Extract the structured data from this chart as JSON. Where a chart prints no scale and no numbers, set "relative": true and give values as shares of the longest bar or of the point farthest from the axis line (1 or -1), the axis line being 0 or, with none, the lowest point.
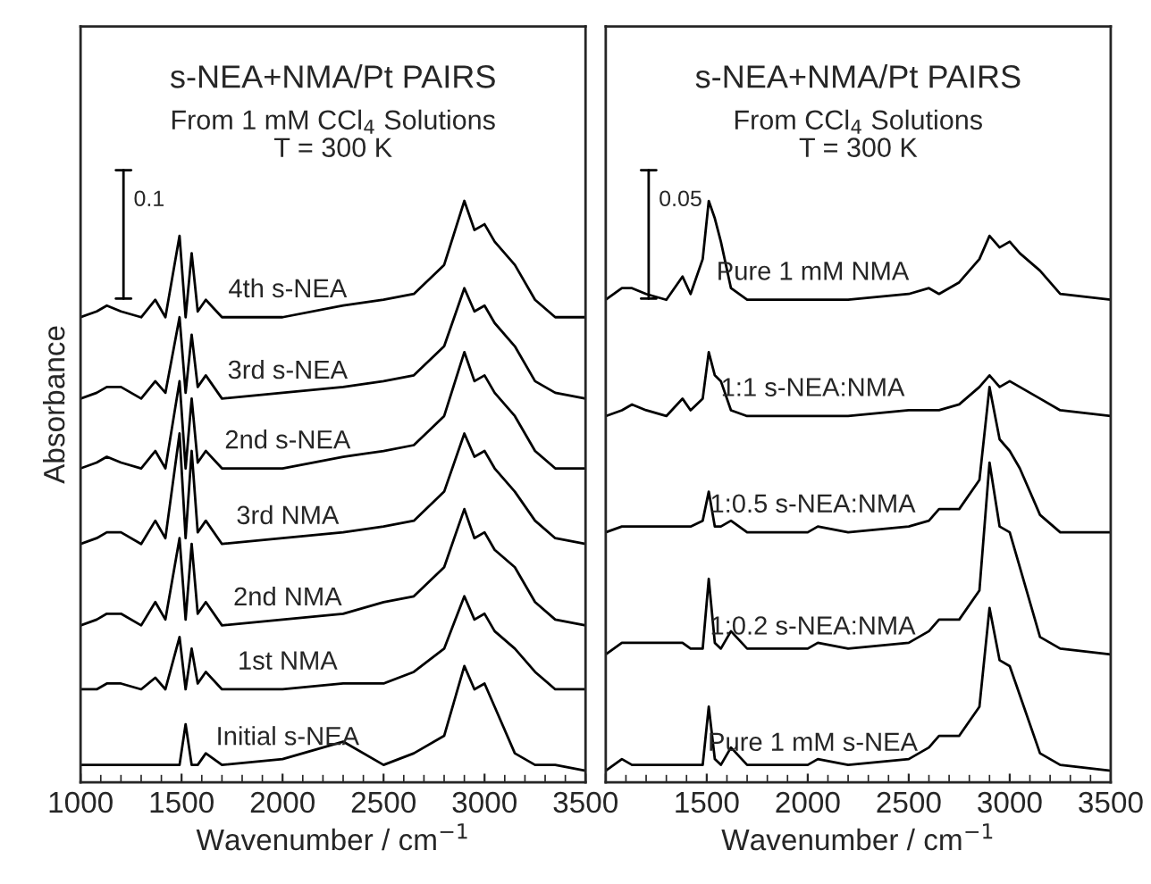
{
  "chart_data": [
    {
      "type": "line",
      "title": "s-NEA+NMA/Pt PAIRS",
      "subtitle": "From 1 mM CCl$_{4}$ Solutions\nT = 300 K",
      "xlabel": "Wavenumber / cm$^{−1}$",
      "ylabel": "Absorbance",
      "relative": true,
      "xlim": [
        1000,
        3500
      ],
      "xticks": [
        1000,
        1500,
        2000,
        2500,
        3000,
        3500
      ],
      "annotations": [
        "0.1"
      ],
      "x": [
        1000,
        1080,
        1130,
        1200,
        1300,
        1370,
        1420,
        1490,
        1520,
        1550,
        1580,
        1620,
        1700,
        2000,
        2300,
        2500,
        2650,
        2800,
        2900,
        2950,
        3000,
        3050,
        3150,
        3250,
        3350,
        3500
      ],
      "series": [
        {
          "name": "4th s-NEA",
          "color": "#000000",
          "values": [
            0.8,
            0.81,
            0.82,
            0.81,
            0.8,
            0.83,
            0.8,
            0.94,
            0.8,
            0.91,
            0.81,
            0.83,
            0.8,
            0.8,
            0.82,
            0.83,
            0.84,
            0.89,
            1.0,
            0.95,
            0.96,
            0.93,
            0.89,
            0.83,
            0.8,
            0.8
          ]
        },
        {
          "name": "3rd s-NEA",
          "color": "#000000",
          "values": [
            0.66,
            0.67,
            0.68,
            0.68,
            0.66,
            0.69,
            0.67,
            0.8,
            0.67,
            0.77,
            0.68,
            0.7,
            0.66,
            0.67,
            0.68,
            0.69,
            0.7,
            0.75,
            0.85,
            0.81,
            0.82,
            0.79,
            0.75,
            0.69,
            0.67,
            0.66
          ]
        },
        {
          "name": "2nd s-NEA",
          "color": "#000000",
          "values": [
            0.54,
            0.55,
            0.56,
            0.55,
            0.54,
            0.57,
            0.54,
            0.69,
            0.54,
            0.66,
            0.55,
            0.57,
            0.54,
            0.54,
            0.56,
            0.57,
            0.58,
            0.63,
            0.74,
            0.69,
            0.7,
            0.67,
            0.63,
            0.57,
            0.54,
            0.54
          ]
        },
        {
          "name": "3rd NMA",
          "color": "#000000",
          "values": [
            0.41,
            0.42,
            0.43,
            0.43,
            0.41,
            0.45,
            0.42,
            0.6,
            0.42,
            0.57,
            0.43,
            0.45,
            0.41,
            0.42,
            0.43,
            0.44,
            0.45,
            0.5,
            0.6,
            0.56,
            0.57,
            0.54,
            0.5,
            0.45,
            0.42,
            0.41
          ]
        },
        {
          "name": "2nd NMA",
          "color": "#000000",
          "values": [
            0.27,
            0.28,
            0.29,
            0.29,
            0.27,
            0.31,
            0.28,
            0.42,
            0.28,
            0.41,
            0.29,
            0.31,
            0.27,
            0.28,
            0.29,
            0.31,
            0.32,
            0.37,
            0.47,
            0.42,
            0.43,
            0.4,
            0.37,
            0.31,
            0.28,
            0.27
          ]
        },
        {
          "name": "1st NMA",
          "color": "#000000",
          "values": [
            0.16,
            0.16,
            0.17,
            0.17,
            0.16,
            0.18,
            0.16,
            0.25,
            0.16,
            0.23,
            0.17,
            0.19,
            0.16,
            0.16,
            0.17,
            0.17,
            0.19,
            0.23,
            0.32,
            0.28,
            0.29,
            0.26,
            0.23,
            0.19,
            0.16,
            0.16
          ]
        },
        {
          "name": "Initial s-NEA",
          "color": "#000000",
          "values": [
            0.03,
            0.03,
            0.03,
            0.03,
            0.03,
            0.03,
            0.03,
            0.03,
            0.1,
            0.03,
            0.03,
            0.05,
            0.03,
            0.04,
            0.07,
            0.03,
            0.05,
            0.08,
            0.2,
            0.16,
            0.17,
            0.13,
            0.05,
            0.03,
            0.03,
            0.02
          ]
        }
      ]
    },
    {
      "type": "line",
      "title": "s-NEA+NMA/Pt PAIRS",
      "subtitle": "From CCl$_{4}$ Solutions\nT = 300 K",
      "xlabel": "Wavenumber / cm$^{−1}$",
      "relative": true,
      "xlim": [
        1000,
        3500
      ],
      "xticks": [
        {
          "value": 1000,
          "label": null
        },
        1500,
        2000,
        2500,
        3000,
        3500
      ],
      "annotations": [
        "0.05"
      ],
      "x": [
        1000,
        1080,
        1130,
        1200,
        1300,
        1380,
        1420,
        1480,
        1510,
        1540,
        1570,
        1620,
        1700,
        2000,
        2050,
        2200,
        2500,
        2600,
        2650,
        2750,
        2850,
        2900,
        2950,
        3000,
        3050,
        3150,
        3250,
        3500
      ],
      "series": [
        {
          "name": "Pure 1 mM NMA",
          "color": "#000000",
          "values": [
            0.83,
            0.85,
            0.85,
            0.84,
            0.83,
            0.87,
            0.84,
            0.9,
            1.0,
            0.97,
            0.93,
            0.85,
            0.83,
            0.83,
            0.83,
            0.83,
            0.84,
            0.85,
            0.84,
            0.86,
            0.9,
            0.94,
            0.92,
            0.93,
            0.91,
            0.88,
            0.84,
            0.83
          ]
        },
        {
          "name": "1:1 s-NEA:NMA",
          "color": "#000000",
          "values": [
            0.63,
            0.64,
            0.65,
            0.64,
            0.63,
            0.66,
            0.64,
            0.66,
            0.74,
            0.7,
            0.69,
            0.64,
            0.63,
            0.63,
            0.63,
            0.63,
            0.64,
            0.64,
            0.64,
            0.65,
            0.68,
            0.7,
            0.68,
            0.69,
            0.68,
            0.66,
            0.64,
            0.63
          ]
        },
        {
          "name": "1:0.5 s-NEA:NMA",
          "color": "#000000",
          "values": [
            0.43,
            0.44,
            0.44,
            0.44,
            0.44,
            0.44,
            0.44,
            0.45,
            0.5,
            0.44,
            0.44,
            0.45,
            0.43,
            0.43,
            0.44,
            0.43,
            0.44,
            0.45,
            0.47,
            0.47,
            0.52,
            0.68,
            0.59,
            0.57,
            0.54,
            0.46,
            0.43,
            0.43
          ]
        },
        {
          "name": "1:0.2 s-NEA:NMA",
          "color": "#000000",
          "values": [
            0.22,
            0.24,
            0.24,
            0.24,
            0.24,
            0.24,
            0.23,
            0.23,
            0.35,
            0.24,
            0.23,
            0.26,
            0.23,
            0.23,
            0.24,
            0.23,
            0.24,
            0.26,
            0.28,
            0.28,
            0.33,
            0.55,
            0.44,
            0.43,
            0.37,
            0.25,
            0.23,
            0.22
          ]
        },
        {
          "name": "Pure 1 mM s-NEA",
          "color": "#000000",
          "values": [
            0.02,
            0.04,
            0.03,
            0.03,
            0.03,
            0.03,
            0.03,
            0.03,
            0.13,
            0.04,
            0.03,
            0.06,
            0.03,
            0.03,
            0.04,
            0.03,
            0.04,
            0.06,
            0.08,
            0.08,
            0.13,
            0.3,
            0.21,
            0.2,
            0.15,
            0.05,
            0.03,
            0.02
          ]
        }
      ]
    }
  ]
}
